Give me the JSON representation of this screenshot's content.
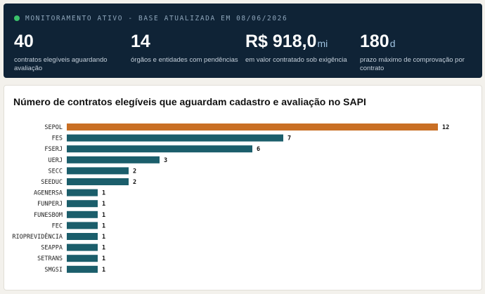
{
  "banner": {
    "status_text": "MONITORAMENTO ATIVO - BASE ATUALIZADA EM 08/06/2026",
    "stats": [
      {
        "value": "40",
        "unit": "",
        "label": "contratos elegíveis aguardando avaliação"
      },
      {
        "value": "14",
        "unit": "",
        "label": "órgãos e entidades com pendências"
      },
      {
        "value": "R$ 918,0",
        "unit": "mi",
        "label": "em valor contratado sob exigência"
      },
      {
        "value": "180",
        "unit": "d",
        "label": "prazo máximo de comprovação por contrato"
      }
    ]
  },
  "colors": {
    "highlight": "#c96f24",
    "bar": "#1b5e6b",
    "banner_bg": "#0f2336",
    "status_dot": "#3ac26b"
  },
  "chart_data": {
    "type": "bar",
    "orientation": "horizontal",
    "title": "Número de contratos elegíveis que aguardam cadastro e avaliação no SAPI",
    "categories": [
      "SEPOL",
      "FES",
      "FSERJ",
      "UERJ",
      "SECC",
      "SEEDUC",
      "AGENERSA",
      "FUNPERJ",
      "FUNESBOM",
      "FEC",
      "RIOPREVIDÊNCIA",
      "SEAPPA",
      "SETRANS",
      "SMGSI"
    ],
    "values": [
      12,
      7,
      6,
      3,
      2,
      2,
      1,
      1,
      1,
      1,
      1,
      1,
      1,
      1
    ],
    "highlight_category": "SEPOL",
    "xlim": [
      0,
      12
    ],
    "xlabel": "",
    "ylabel": "",
    "grid": false,
    "legend": false
  }
}
